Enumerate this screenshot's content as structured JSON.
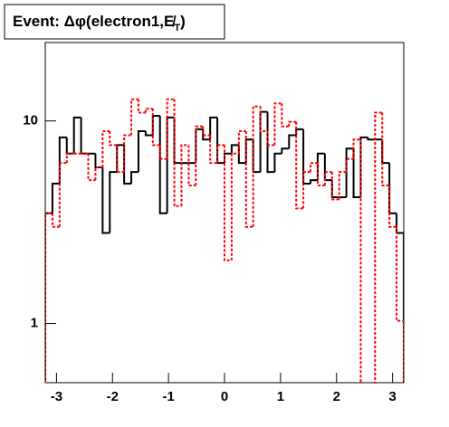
{
  "chart_data": {
    "type": "histogram",
    "title_main": "Event: Δφ(electron1,E̸",
    "title_sub": "T",
    "title_end": ")",
    "bins": [
      -3.2,
      -3.072,
      -2.944,
      -2.816,
      -2.688,
      -2.56,
      -2.432,
      -2.304,
      -2.176,
      -2.048,
      -1.92,
      -1.792,
      -1.664,
      -1.536,
      -1.408,
      -1.28,
      -1.152,
      -1.024,
      -0.896,
      -0.768,
      -0.64,
      -0.512,
      -0.384,
      -0.256,
      -0.128,
      0,
      0.128,
      0.256,
      0.384,
      0.512,
      0.64,
      0.768,
      0.896,
      1.024,
      1.152,
      1.28,
      1.408,
      1.536,
      1.664,
      1.792,
      1.92,
      2.048,
      2.176,
      2.304,
      2.432,
      2.56,
      2.688,
      2.816,
      2.944,
      3.072,
      3.2
    ],
    "series": [
      {
        "color": "#000000",
        "line_style": "solid",
        "values": [
          3.5,
          4.9,
          8.3,
          6.9,
          10.4,
          6.9,
          6.9,
          5.9,
          2.8,
          5.6,
          7.6,
          4.9,
          5.6,
          8.9,
          8.5,
          10.6,
          3.5,
          10.4,
          6.2,
          6.2,
          6.2,
          9.1,
          8.1,
          10.4,
          6.2,
          6.9,
          7.6,
          6.2,
          8.1,
          5.6,
          11.1,
          5.6,
          6.9,
          7.3,
          8.5,
          9.1,
          4.9,
          5.1,
          6.9,
          5.1,
          4.2,
          4.2,
          7.3,
          4.2,
          8.3,
          8.1,
          8.1,
          6.2,
          3.5,
          2.8
        ]
      },
      {
        "color": "#ff0000",
        "line_style": "dotted",
        "values": [
          3.5,
          3.0,
          6.2,
          6.9,
          6.9,
          6.9,
          5.1,
          5.9,
          8.9,
          7.6,
          5.6,
          8.5,
          12.8,
          11,
          11.5,
          7.6,
          6.5,
          12.8,
          3.8,
          7.6,
          4.8,
          9.4,
          8.5,
          6.2,
          7.6,
          2.05,
          6.9,
          8.9,
          3.0,
          11.8,
          8.9,
          7.6,
          12.2,
          9.4,
          9.9,
          3.7,
          5.6,
          6.2,
          4.8,
          5.6,
          4.1,
          5.6,
          6.5,
          8.1,
          0,
          0,
          11,
          4.8,
          3.0,
          1.03
        ]
      }
    ],
    "xlim": [
      -3.2,
      3.2
    ],
    "xticks": [
      -3,
      -2,
      -1,
      0,
      1,
      2,
      3
    ],
    "ylim": [
      0.51,
      24.4
    ],
    "yticks": [
      1,
      10
    ],
    "log_y": true,
    "grid": false
  }
}
